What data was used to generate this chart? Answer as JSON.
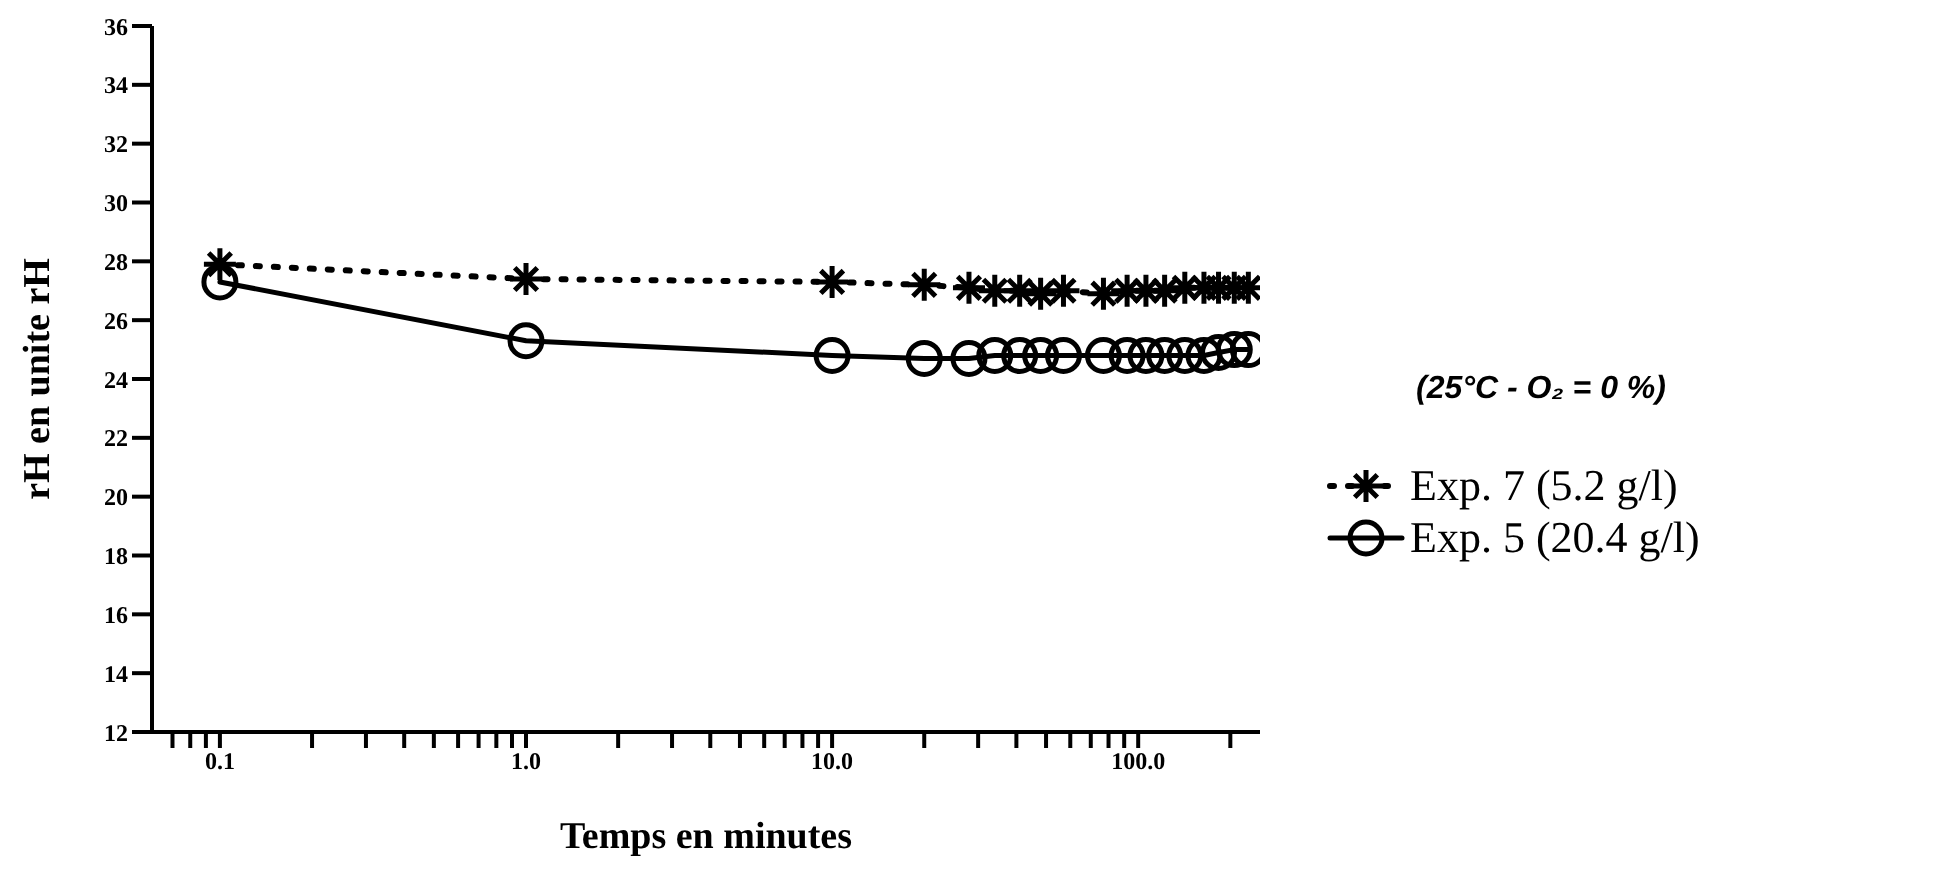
{
  "chart_data": {
    "type": "line",
    "xlabel": "Temps en minutes",
    "ylabel": "rH en unite rH",
    "log": "x",
    "xlim": [
      0.06,
      250
    ],
    "xticks": [
      {
        "value": 0.07,
        "label": null
      },
      {
        "value": 0.08,
        "label": null
      },
      {
        "value": 0.09,
        "label": null
      },
      {
        "value": 0.1,
        "label": "0.1"
      },
      {
        "value": 0.2,
        "label": null
      },
      {
        "value": 0.3,
        "label": null
      },
      {
        "value": 0.4,
        "label": null
      },
      {
        "value": 0.5,
        "label": null
      },
      {
        "value": 0.6,
        "label": null
      },
      {
        "value": 0.7,
        "label": null
      },
      {
        "value": 0.8,
        "label": null
      },
      {
        "value": 0.9,
        "label": null
      },
      {
        "value": 1,
        "label": "1.0"
      },
      {
        "value": 2,
        "label": null
      },
      {
        "value": 3,
        "label": null
      },
      {
        "value": 4,
        "label": null
      },
      {
        "value": 5,
        "label": null
      },
      {
        "value": 6,
        "label": null
      },
      {
        "value": 7,
        "label": null
      },
      {
        "value": 8,
        "label": null
      },
      {
        "value": 9,
        "label": null
      },
      {
        "value": 10,
        "label": "10.0"
      },
      {
        "value": 20,
        "label": null
      },
      {
        "value": 30,
        "label": null
      },
      {
        "value": 40,
        "label": null
      },
      {
        "value": 50,
        "label": null
      },
      {
        "value": 60,
        "label": null
      },
      {
        "value": 70,
        "label": null
      },
      {
        "value": 80,
        "label": null
      },
      {
        "value": 90,
        "label": null
      },
      {
        "value": 100,
        "label": "100.0"
      },
      {
        "value": 200,
        "label": null
      }
    ],
    "ylim": [
      12,
      36
    ],
    "yticks": [
      12,
      14,
      16,
      18,
      20,
      22,
      24,
      26,
      28,
      30,
      32,
      34,
      36
    ],
    "grid": false,
    "legend": "right",
    "annotations": [
      "(25°C - O₂ = 0 %)"
    ],
    "series": [
      {
        "name": "Exp. 7 (5.2 g/l)",
        "color": "#000000",
        "marker": "cross",
        "line_style": "dotted",
        "x": [
          0.1,
          1,
          10,
          20,
          28,
          34,
          41,
          48,
          57,
          77,
          92,
          106,
          122,
          142,
          164,
          183,
          206,
          229
        ],
        "values": [
          27.9,
          27.4,
          27.3,
          27.2,
          27.1,
          27.0,
          27.0,
          26.9,
          27.0,
          26.9,
          27.0,
          27.0,
          27.0,
          27.1,
          27.1,
          27.1,
          27.1,
          27.1
        ]
      },
      {
        "name": "Exp. 5 (20.4 g/l)",
        "color": "#000000",
        "marker": "circle",
        "line_style": "solid",
        "x": [
          0.1,
          1,
          10,
          20,
          28,
          34,
          41,
          48,
          57,
          77,
          92,
          106,
          122,
          142,
          164,
          183,
          206,
          229
        ],
        "values": [
          27.3,
          25.3,
          24.8,
          24.7,
          24.7,
          24.8,
          24.8,
          24.8,
          24.8,
          24.8,
          24.8,
          24.8,
          24.8,
          24.8,
          24.8,
          24.9,
          25.0,
          25.0
        ]
      }
    ]
  }
}
